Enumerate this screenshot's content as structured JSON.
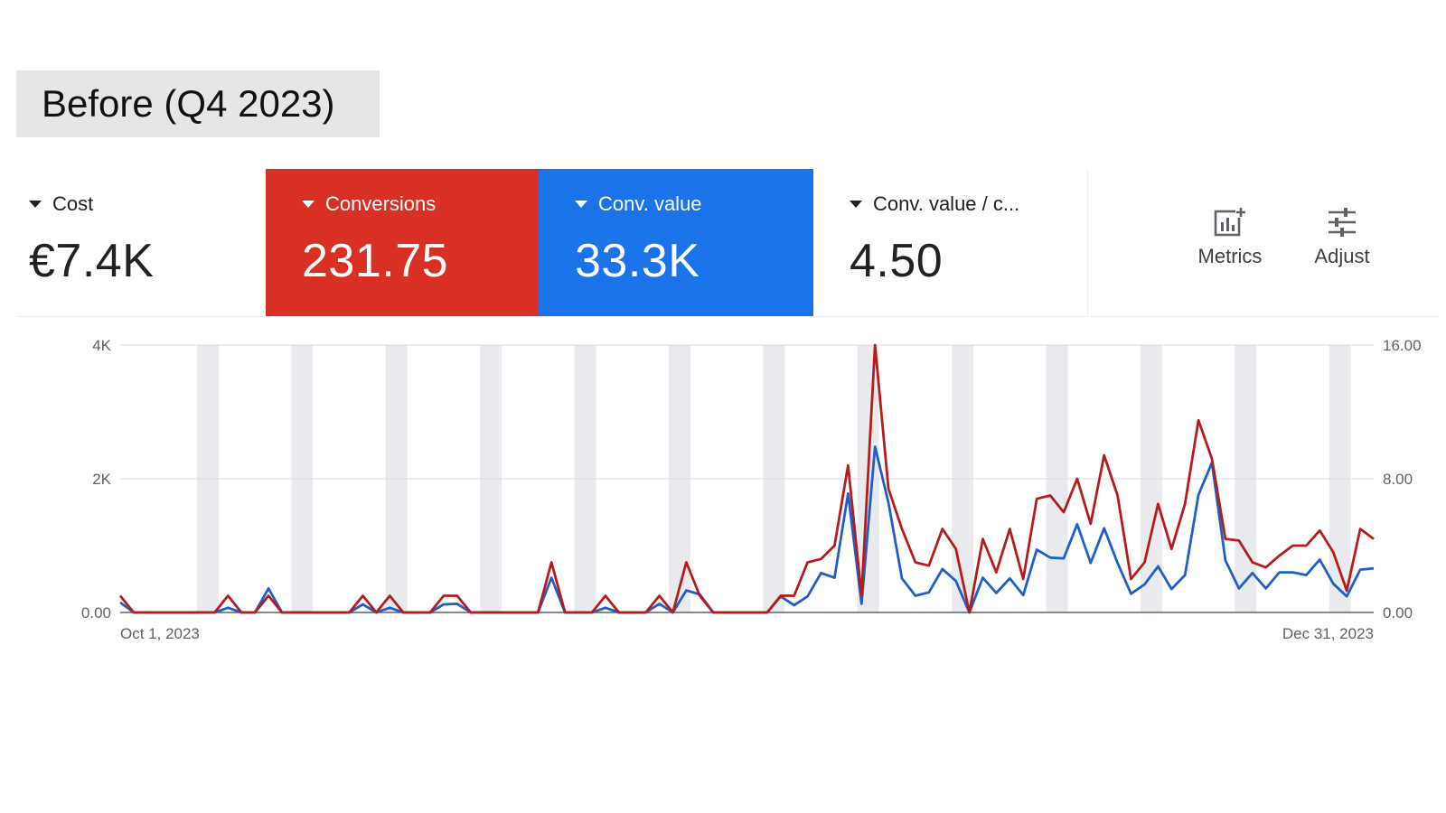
{
  "period_label": "Before (Q4 2023)",
  "colors": {
    "conversions": "#d93025",
    "conv_value": "#1a73e8",
    "conversions_line": "#b71c1c",
    "conv_value_line": "#1e5fc9",
    "weekend_band": "#e8eaed"
  },
  "scorecards": [
    {
      "label": "Cost",
      "value": "€7.4K",
      "selected": false
    },
    {
      "label": "Conversions",
      "value": "231.75",
      "selected": true,
      "color": "#d93025"
    },
    {
      "label": "Conv. value",
      "value": "33.3K",
      "selected": true,
      "color": "#1a73e8"
    },
    {
      "label": "Conv. value / c...",
      "value": "4.50",
      "selected": false
    }
  ],
  "tools": [
    {
      "label": "Metrics",
      "icon": "metrics-icon"
    },
    {
      "label": "Adjust",
      "icon": "adjust-icon"
    }
  ],
  "chart_data": {
    "type": "line",
    "x_start": "Oct 1, 2023",
    "x_end": "Dec 31, 2023",
    "left_axis": {
      "ticks": [
        "0.00",
        "2K",
        "4K"
      ],
      "range": [
        0,
        4000
      ]
    },
    "right_axis": {
      "ticks": [
        "0.00",
        "8.00",
        "16.00"
      ],
      "range": [
        0,
        16
      ]
    },
    "grid": true,
    "series": [
      {
        "name": "Conversions",
        "axis": "right",
        "color": "#b71c1c",
        "values": [
          1.0,
          0,
          0,
          0,
          0,
          0,
          0,
          0,
          1.0,
          0,
          0,
          1.0,
          0,
          0,
          0,
          0,
          0,
          0,
          1.0,
          0,
          1.0,
          0,
          0,
          0,
          1.0,
          1.0,
          0,
          0,
          0,
          0,
          0,
          0,
          3.0,
          0,
          0,
          0,
          1.0,
          0,
          0,
          0,
          1.0,
          0,
          3.0,
          1.0,
          0,
          0,
          0,
          0,
          0,
          1.0,
          1.0,
          3.0,
          3.2,
          4.0,
          8.8,
          1.0,
          16.0,
          7.4,
          5.0,
          3.0,
          2.8,
          5.0,
          3.8,
          0,
          4.4,
          2.4,
          5.0,
          2.0,
          6.8,
          7.0,
          6.0,
          8.0,
          5.3,
          9.4,
          7.0,
          2.0,
          3.0,
          6.5,
          3.8,
          6.5,
          11.5,
          9.2,
          4.4,
          4.3,
          3.0,
          2.7,
          3.4,
          4.0,
          4.0,
          4.9,
          3.6,
          1.3,
          5.0,
          4.4
        ]
      },
      {
        "name": "Conv. value",
        "axis": "left",
        "color": "#1e5fc9",
        "values": [
          150,
          0,
          0,
          0,
          0,
          0,
          0,
          0,
          70,
          0,
          0,
          360,
          0,
          0,
          0,
          0,
          0,
          0,
          120,
          0,
          70,
          0,
          0,
          0,
          120,
          130,
          0,
          0,
          0,
          0,
          0,
          0,
          520,
          0,
          0,
          0,
          70,
          0,
          0,
          0,
          130,
          0,
          330,
          270,
          0,
          0,
          0,
          0,
          0,
          240,
          110,
          240,
          590,
          520,
          1780,
          130,
          2480,
          1640,
          510,
          250,
          300,
          650,
          470,
          0,
          520,
          290,
          510,
          260,
          940,
          820,
          810,
          1320,
          740,
          1260,
          740,
          280,
          420,
          690,
          350,
          560,
          1760,
          2240,
          780,
          360,
          590,
          360,
          600,
          600,
          560,
          790,
          430,
          240,
          640,
          660
        ]
      }
    ]
  }
}
